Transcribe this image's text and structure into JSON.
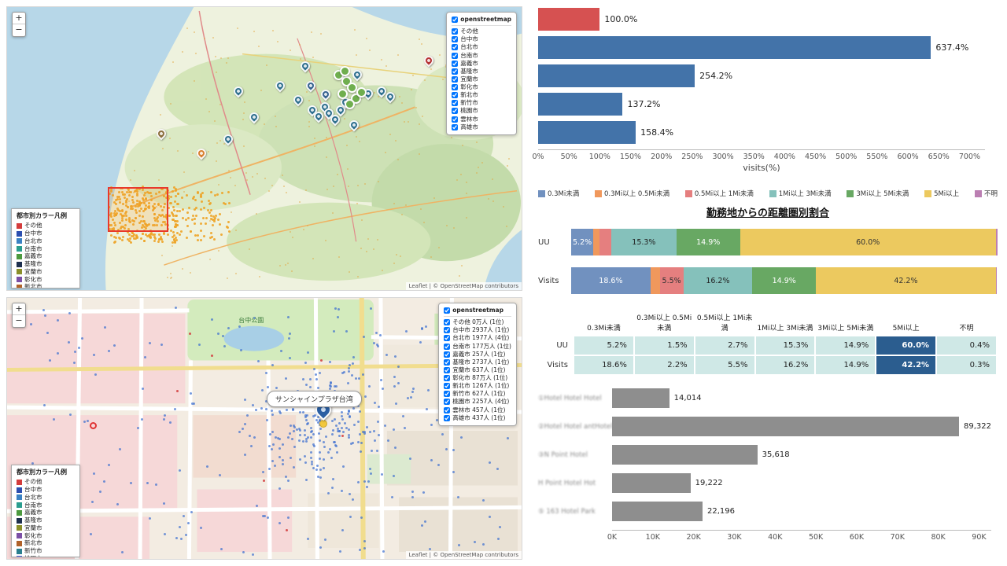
{
  "maps": {
    "layer_control_title": "openstreetmap",
    "legend_title": "都市別カラー凡例",
    "attribution": "Leaflet | © OpenStreetMap contributors",
    "tooltip": "サンシャインプラザ台湾",
    "park_label": "台中公園",
    "zoom_in": "+",
    "zoom_out": "−",
    "cities": [
      {
        "name": "その他",
        "color": "#d43c3c",
        "stat": "その他 0万人 (1位)"
      },
      {
        "name": "台中市",
        "color": "#2c4fb0",
        "stat": "台中市 2937人 (1位)"
      },
      {
        "name": "台北市",
        "color": "#3b82c4",
        "stat": "台北市 1977人 (4位)"
      },
      {
        "name": "台南市",
        "color": "#2a9d8f",
        "stat": "台南市 177万人 (1位)"
      },
      {
        "name": "嘉義市",
        "color": "#4c9a3f",
        "stat": "嘉義市 257人 (1位)"
      },
      {
        "name": "基隆市",
        "color": "#1d2f4e",
        "stat": "基隆市 2737人 (1位)"
      },
      {
        "name": "宜蘭市",
        "color": "#8a8f2a",
        "stat": "宜蘭市 637人 (1位)"
      },
      {
        "name": "彰化市",
        "color": "#7b4fa6",
        "stat": "彰化市 87万人 (1位)"
      },
      {
        "name": "新北市",
        "color": "#b0622a",
        "stat": "新北市 1267人 (1位)"
      },
      {
        "name": "新竹市",
        "color": "#2a7f8f",
        "stat": "新竹市 627人 (1位)"
      },
      {
        "name": "桃園市",
        "color": "#4455d4",
        "stat": "桃園市 2257人 (4位)"
      },
      {
        "name": "雲林市",
        "color": "#999f3a",
        "stat": "雲林市 457人 (1位)"
      },
      {
        "name": "高雄市",
        "color": "#555555",
        "stat": "高雄市 437人 (1位)"
      }
    ]
  },
  "chart_data": [
    {
      "type": "bar",
      "orientation": "horizontal",
      "xlabel": "visits(%)",
      "xlim": [
        0,
        700
      ],
      "scale_max": 725,
      "tick_step": 50,
      "xticks": [
        "0%",
        "50%",
        "100%",
        "150%",
        "200%",
        "250%",
        "300%",
        "350%",
        "400%",
        "450%",
        "500%",
        "550%",
        "600%",
        "650%",
        "700%"
      ],
      "bars": [
        {
          "value": 100.0,
          "label": "100.0%",
          "color": "#d65151"
        },
        {
          "value": 637.4,
          "label": "637.4%",
          "color": "#4373a9"
        },
        {
          "value": 254.2,
          "label": "254.2%",
          "color": "#4373a9"
        },
        {
          "value": 137.2,
          "label": "137.2%",
          "color": "#4373a9"
        },
        {
          "value": 158.4,
          "label": "158.4%",
          "color": "#4373a9"
        }
      ]
    },
    {
      "type": "stacked-bar",
      "title": "勤務地からの距離圏別割合",
      "categories": [
        "UU",
        "Visits"
      ],
      "unit": "%",
      "label_min": 5,
      "series": [
        {
          "name": "0.3Mi未満",
          "color": "#7191bf",
          "text": "#ffffff",
          "values": [
            5.2,
            18.6
          ]
        },
        {
          "name": "0.3Mi以上 0.5Mi未満",
          "color": "#f0985c",
          "text": "#333333",
          "values": [
            1.5,
            2.2
          ]
        },
        {
          "name": "0.5Mi以上 1Mi未満",
          "color": "#e57f7f",
          "text": "#333333",
          "values": [
            2.7,
            5.5
          ]
        },
        {
          "name": "1Mi以上 3Mi未満",
          "color": "#85c1bb",
          "text": "#222222",
          "values": [
            15.3,
            16.2
          ]
        },
        {
          "name": "3Mi以上 5Mi未満",
          "color": "#68a863",
          "text": "#ffffff",
          "values": [
            14.9,
            14.9
          ]
        },
        {
          "name": "5Mi以上",
          "color": "#ecc95f",
          "text": "#333333",
          "values": [
            60.0,
            42.2
          ]
        },
        {
          "name": "不明",
          "color": "#bb7fb2",
          "text": "#ffffff",
          "values": [
            0.4,
            0.3
          ]
        }
      ]
    },
    {
      "type": "table",
      "columns": [
        "0.3Mi未満",
        "0.3Mi以上 0.5Mi未満",
        "0.5Mi以上 1Mi未満",
        "1Mi以上 3Mi未満",
        "3Mi以上 5Mi未満",
        "5Mi以上",
        "不明"
      ],
      "rows": [
        {
          "label": "UU",
          "values": [
            "5.2%",
            "1.5%",
            "2.7%",
            "15.3%",
            "14.9%",
            "60.0%",
            "0.4%"
          ]
        },
        {
          "label": "Visits",
          "values": [
            "18.6%",
            "2.2%",
            "5.5%",
            "16.2%",
            "14.9%",
            "42.2%",
            "0.3%"
          ]
        }
      ],
      "highlight_column_index": 5,
      "cell_bg": "#cfe8e6",
      "highlight_bg": "#2b5d8f",
      "highlight_text": "#ffffff"
    },
    {
      "type": "bar",
      "orientation": "horizontal",
      "xlim": [
        0,
        90000
      ],
      "scale_max": 93000,
      "tick_step": 10000,
      "xticks": [
        "0K",
        "10K",
        "20K",
        "30K",
        "40K",
        "50K",
        "60K",
        "70K",
        "80K",
        "90K"
      ],
      "bar_color": "#8e8e8e",
      "bars": [
        {
          "category": "①Hotel Hotel Hotel",
          "value": 14014,
          "label": "14,014"
        },
        {
          "category": "②Hotel Hotel antHotel",
          "value": 89322,
          "label": "89,322"
        },
        {
          "category": "③N Point Hotel",
          "value": 35618,
          "label": "35,618"
        },
        {
          "category": "H Point Hotel Hot",
          "value": 19222,
          "label": "19,222"
        },
        {
          "category": "⑤ 163 Hotel Park",
          "value": 22196,
          "label": "22,196"
        }
      ]
    }
  ]
}
